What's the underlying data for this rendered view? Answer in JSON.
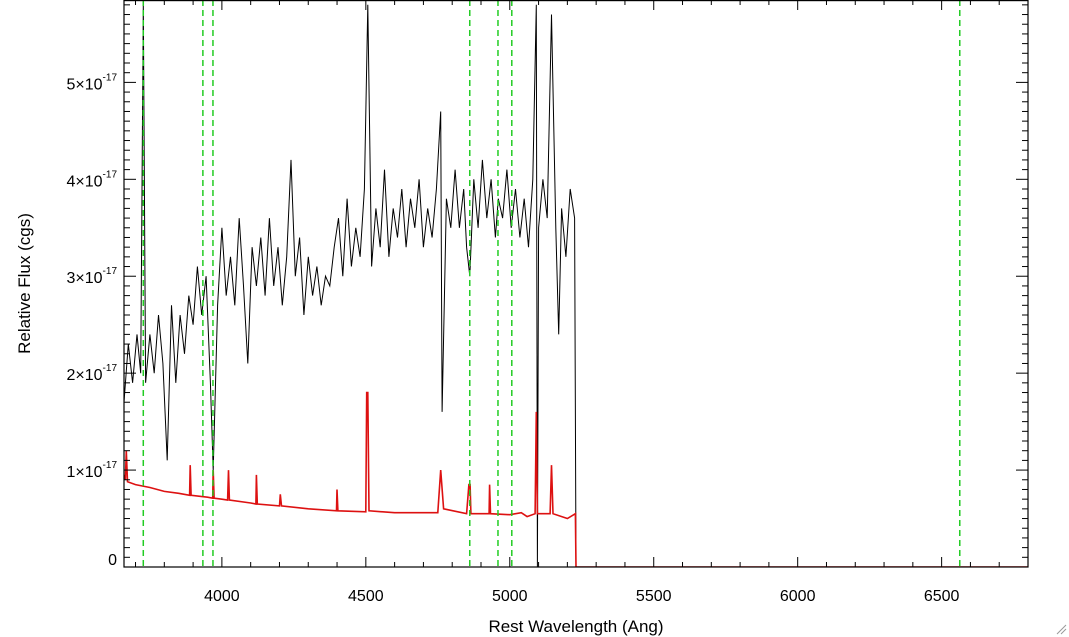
{
  "chart_data": {
    "type": "line",
    "title": "",
    "xlabel": "Rest Wavelength (Ang)",
    "ylabel": "Relative Flux (cgs)",
    "xlim": [
      3660,
      6800
    ],
    "ylim": [
      0,
      5.85e-17
    ],
    "x_ticks": [
      {
        "value": 4000,
        "label": "4000"
      },
      {
        "value": 4500,
        "label": "4500"
      },
      {
        "value": 5000,
        "label": "5000"
      },
      {
        "value": 5500,
        "label": "5500"
      },
      {
        "value": 6000,
        "label": "6000"
      },
      {
        "value": 6500,
        "label": "6500"
      }
    ],
    "y_ticks": [
      {
        "value": 0,
        "mantissa": "0",
        "exponent": ""
      },
      {
        "value": 1e-17,
        "mantissa": "1×10",
        "exponent": "-17"
      },
      {
        "value": 2e-17,
        "mantissa": "2×10",
        "exponent": "-17"
      },
      {
        "value": 3e-17,
        "mantissa": "3×10",
        "exponent": "-17"
      },
      {
        "value": 4e-17,
        "mantissa": "4×10",
        "exponent": "-17"
      },
      {
        "value": 5e-17,
        "mantissa": "5×10",
        "exponent": "-17"
      }
    ],
    "grid": false,
    "legend": "none",
    "reference_lines": {
      "color": "#22cc22",
      "style": "dashed",
      "x": [
        3727,
        3934,
        3969,
        4861,
        4959,
        5007,
        6563
      ]
    },
    "series": [
      {
        "color": "#000000",
        "points": [
          [
            3660,
            1.7e-17
          ],
          [
            3675,
            2.3e-17
          ],
          [
            3690,
            1.9e-17
          ],
          [
            3705,
            2.4e-17
          ],
          [
            3718,
            2e-17
          ],
          [
            3727,
            5.8e-17
          ],
          [
            3735,
            1.9e-17
          ],
          [
            3750,
            2.4e-17
          ],
          [
            3765,
            2e-17
          ],
          [
            3780,
            2.6e-17
          ],
          [
            3795,
            2.1e-17
          ],
          [
            3810,
            1.1e-17
          ],
          [
            3825,
            2.7e-17
          ],
          [
            3840,
            1.9e-17
          ],
          [
            3855,
            2.6e-17
          ],
          [
            3870,
            2.2e-17
          ],
          [
            3885,
            2.8e-17
          ],
          [
            3900,
            2.5e-17
          ],
          [
            3915,
            3.1e-17
          ],
          [
            3930,
            2.6e-17
          ],
          [
            3945,
            3e-17
          ],
          [
            3960,
            1.9e-17
          ],
          [
            3970,
            1e-17
          ],
          [
            3985,
            2.7e-17
          ],
          [
            4000,
            3.5e-17
          ],
          [
            4015,
            2.8e-17
          ],
          [
            4030,
            3.2e-17
          ],
          [
            4045,
            2.7e-17
          ],
          [
            4060,
            3.6e-17
          ],
          [
            4075,
            2.9e-17
          ],
          [
            4090,
            2.1e-17
          ],
          [
            4105,
            3.3e-17
          ],
          [
            4120,
            2.9e-17
          ],
          [
            4135,
            3.4e-17
          ],
          [
            4150,
            2.8e-17
          ],
          [
            4165,
            3.6e-17
          ],
          [
            4180,
            2.9e-17
          ],
          [
            4195,
            3.3e-17
          ],
          [
            4210,
            2.7e-17
          ],
          [
            4225,
            3.2e-17
          ],
          [
            4240,
            4.2e-17
          ],
          [
            4255,
            3e-17
          ],
          [
            4270,
            3.4e-17
          ],
          [
            4285,
            2.6e-17
          ],
          [
            4300,
            3.2e-17
          ],
          [
            4315,
            2.8e-17
          ],
          [
            4330,
            3.1e-17
          ],
          [
            4345,
            2.7e-17
          ],
          [
            4360,
            3e-17
          ],
          [
            4375,
            2.9e-17
          ],
          [
            4390,
            3.3e-17
          ],
          [
            4405,
            3.6e-17
          ],
          [
            4420,
            3e-17
          ],
          [
            4435,
            3.8e-17
          ],
          [
            4450,
            3.1e-17
          ],
          [
            4465,
            3.5e-17
          ],
          [
            4480,
            3.2e-17
          ],
          [
            4495,
            3.9e-17
          ],
          [
            4507,
            5.8e-17
          ],
          [
            4520,
            3.1e-17
          ],
          [
            4535,
            3.7e-17
          ],
          [
            4550,
            3.3e-17
          ],
          [
            4565,
            4.1e-17
          ],
          [
            4580,
            3.2e-17
          ],
          [
            4595,
            3.7e-17
          ],
          [
            4610,
            3.4e-17
          ],
          [
            4625,
            3.9e-17
          ],
          [
            4640,
            3.3e-17
          ],
          [
            4655,
            3.8e-17
          ],
          [
            4670,
            3.5e-17
          ],
          [
            4685,
            4e-17
          ],
          [
            4700,
            3.3e-17
          ],
          [
            4715,
            3.7e-17
          ],
          [
            4730,
            3.4e-17
          ],
          [
            4745,
            3.9e-17
          ],
          [
            4760,
            4.7e-17
          ],
          [
            4765,
            1.6e-17
          ],
          [
            4780,
            3.8e-17
          ],
          [
            4795,
            3.5e-17
          ],
          [
            4810,
            4.1e-17
          ],
          [
            4825,
            3.5e-17
          ],
          [
            4840,
            3.9e-17
          ],
          [
            4850,
            3.3e-17
          ],
          [
            4861,
            3e-17
          ],
          [
            4875,
            4e-17
          ],
          [
            4890,
            3.5e-17
          ],
          [
            4905,
            4.2e-17
          ],
          [
            4920,
            3.6e-17
          ],
          [
            4935,
            4e-17
          ],
          [
            4950,
            3.4e-17
          ],
          [
            4960,
            3.8e-17
          ],
          [
            4975,
            3.6e-17
          ],
          [
            4990,
            4.1e-17
          ],
          [
            5005,
            3.5e-17
          ],
          [
            5020,
            3.9e-17
          ],
          [
            5035,
            3.4e-17
          ],
          [
            5050,
            3.8e-17
          ],
          [
            5065,
            3.3e-17
          ],
          [
            5080,
            4e-17
          ],
          [
            5092,
            5.8e-17
          ],
          [
            5096,
            0.0
          ],
          [
            5100,
            3.5e-17
          ],
          [
            5115,
            4e-17
          ],
          [
            5130,
            3.6e-17
          ],
          [
            5145,
            5.7e-17
          ],
          [
            5160,
            3.5e-17
          ],
          [
            5170,
            2.4e-17
          ],
          [
            5180,
            3.7e-17
          ],
          [
            5195,
            3.2e-17
          ],
          [
            5210,
            3.9e-17
          ],
          [
            5225,
            3.6e-17
          ],
          [
            5230,
            0.0
          ],
          [
            5240,
            0.0
          ],
          [
            6800,
            0.0
          ]
        ]
      },
      {
        "color": "#dd1111",
        "points": [
          [
            3660,
            9.5e-18
          ],
          [
            3665,
            9e-18
          ],
          [
            3668,
            1.2e-17
          ],
          [
            3672,
            8.8e-18
          ],
          [
            3700,
            8.5e-18
          ],
          [
            3750,
            8.2e-18
          ],
          [
            3800,
            7.8e-18
          ],
          [
            3850,
            7.6e-18
          ],
          [
            3888,
            7.4e-18
          ],
          [
            3890,
            1.05e-17
          ],
          [
            3893,
            7.4e-18
          ],
          [
            3950,
            7.2e-18
          ],
          [
            3968,
            7.1e-18
          ],
          [
            3970,
            1e-17
          ],
          [
            3973,
            7.1e-18
          ],
          [
            4000,
            7e-18
          ],
          [
            4020,
            6.9e-18
          ],
          [
            4023,
            1e-17
          ],
          [
            4026,
            6.9e-18
          ],
          [
            4100,
            6.6e-18
          ],
          [
            4118,
            6.5e-18
          ],
          [
            4120,
            9.5e-18
          ],
          [
            4123,
            6.5e-18
          ],
          [
            4200,
            6.3e-18
          ],
          [
            4203,
            7.5e-18
          ],
          [
            4207,
            6.3e-18
          ],
          [
            4300,
            6e-18
          ],
          [
            4398,
            5.8e-18
          ],
          [
            4400,
            8e-18
          ],
          [
            4403,
            5.8e-18
          ],
          [
            4500,
            5.7e-18
          ],
          [
            4503,
            1.8e-17
          ],
          [
            4507,
            1.8e-17
          ],
          [
            4511,
            5.8e-18
          ],
          [
            4600,
            5.6e-18
          ],
          [
            4750,
            5.6e-18
          ],
          [
            4760,
            1e-17
          ],
          [
            4770,
            6e-18
          ],
          [
            4850,
            5.5e-18
          ],
          [
            4858,
            8.5e-18
          ],
          [
            4862,
            8.5e-18
          ],
          [
            4865,
            5.5e-18
          ],
          [
            4928,
            5.5e-18
          ],
          [
            4930,
            8.5e-18
          ],
          [
            4933,
            5.5e-18
          ],
          [
            5000,
            5.4e-18
          ],
          [
            5040,
            5.6e-18
          ],
          [
            5060,
            5.2e-18
          ],
          [
            5088,
            5.5e-18
          ],
          [
            5092,
            1.6e-17
          ],
          [
            5096,
            5.5e-18
          ],
          [
            5140,
            5.5e-18
          ],
          [
            5145,
            1.05e-17
          ],
          [
            5150,
            5.5e-18
          ],
          [
            5200,
            5e-18
          ],
          [
            5228,
            5.5e-18
          ],
          [
            5230,
            0.0
          ],
          [
            6800,
            0.0
          ]
        ]
      }
    ]
  }
}
